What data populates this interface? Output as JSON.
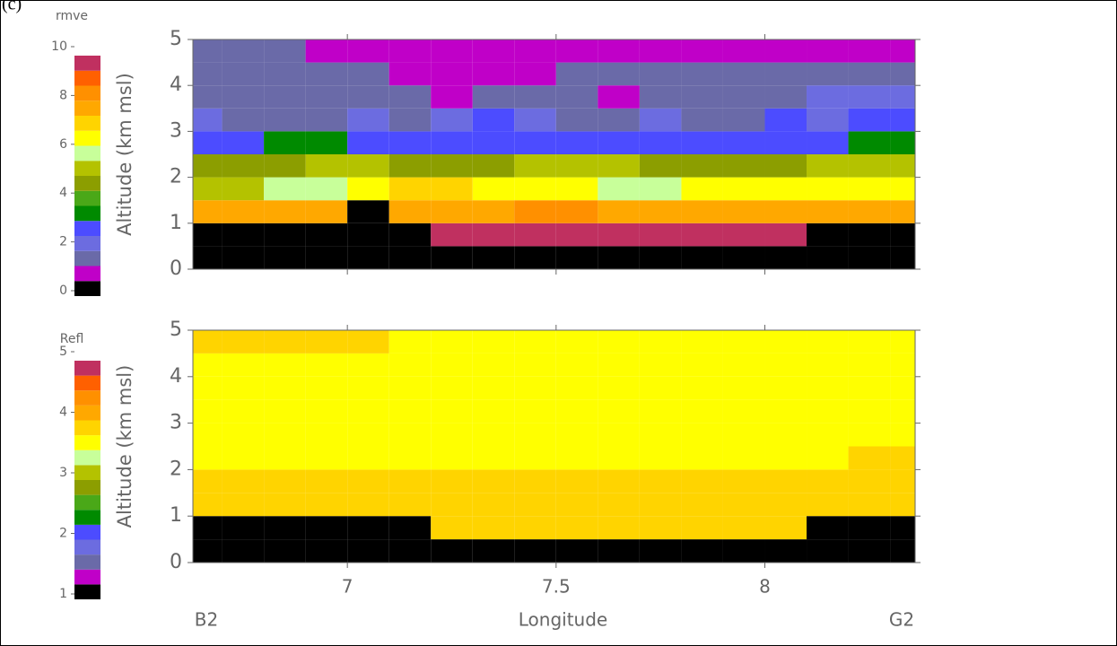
{
  "panel_label": "(c)",
  "chart_data": [
    {
      "type": "heatmap",
      "colorbar_label": "rmve",
      "ylabel": "Altitude (km msl)",
      "zlim": [
        0,
        10
      ],
      "cbticks": [
        0,
        2,
        4,
        6,
        8,
        10
      ],
      "colors": [
        "#000000",
        "#c000c8",
        "#6a6aa8",
        "#6c6ce0",
        "#4c4cff",
        "#008a00",
        "#4aa818",
        "#8c9e00",
        "#b4c200",
        "#c8ff9a",
        "#ffff00",
        "#ffd400",
        "#ffa800",
        "#ff9000",
        "#ff6000",
        "#c03060"
      ],
      "x": [
        6.65,
        6.75,
        6.85,
        6.95,
        7.05,
        7.15,
        7.25,
        7.35,
        7.45,
        7.55,
        7.65,
        7.75,
        7.85,
        7.95,
        8.05,
        8.15,
        8.25,
        8.35
      ],
      "y": [
        0.25,
        0.75,
        1.25,
        1.75,
        2.25,
        2.75,
        3.25,
        3.75,
        4.25,
        4.75
      ],
      "z": [
        [
          0,
          0,
          0,
          0,
          0,
          0,
          0,
          0,
          0,
          0,
          0,
          0,
          0,
          0,
          0,
          0,
          0,
          0
        ],
        [
          0,
          0,
          0,
          0,
          0,
          0,
          9.6,
          9.6,
          9.6,
          9.6,
          9.6,
          9.6,
          9.6,
          9.6,
          9.6,
          0,
          0,
          0
        ],
        [
          7.6,
          7.6,
          7.6,
          7.6,
          0,
          7.6,
          7.6,
          7.9,
          8.2,
          8.2,
          7.9,
          7.6,
          7.6,
          7.6,
          7.6,
          7.6,
          7.6,
          7.6
        ],
        [
          5.6,
          5.6,
          6.2,
          6.2,
          6.6,
          7.2,
          7.2,
          6.8,
          6.6,
          6.6,
          6.2,
          6.2,
          6.6,
          6.8,
          6.6,
          6.6,
          6.6,
          6.6
        ],
        [
          4.6,
          4.6,
          4.6,
          5.2,
          5.6,
          4.6,
          4.6,
          4.6,
          5.2,
          5.6,
          5.6,
          4.6,
          4.4,
          4.4,
          4.6,
          5.2,
          5.6,
          5.6
        ],
        [
          2.6,
          2.8,
          3.6,
          3.2,
          2.8,
          2.8,
          2.6,
          2.6,
          2.6,
          2.8,
          2.6,
          2.6,
          2.6,
          2.6,
          2.8,
          2.6,
          3.2,
          3.4
        ],
        [
          2.2,
          1.8,
          1.6,
          1.8,
          2.2,
          1.6,
          2.2,
          2.6,
          2.2,
          1.6,
          1.8,
          2.2,
          1.8,
          1.4,
          2.6,
          2.2,
          2.6,
          2.6
        ],
        [
          1.6,
          1.6,
          1.6,
          1.6,
          1.6,
          1.6,
          1.2,
          1.6,
          1.6,
          1.6,
          1.2,
          1.6,
          1.8,
          1.8,
          1.8,
          2.2,
          2.2,
          2.2
        ],
        [
          1.6,
          1.6,
          1.6,
          1.6,
          1.6,
          1.2,
          1.2,
          1.2,
          1.2,
          1.6,
          1.6,
          1.6,
          1.6,
          1.6,
          1.6,
          1.6,
          1.6,
          1.6
        ],
        [
          1.6,
          1.6,
          1.6,
          1.2,
          0.8,
          0.8,
          0.8,
          0.8,
          0.8,
          0.8,
          0.8,
          0.8,
          0.8,
          0.8,
          0.8,
          0.8,
          0.8,
          0.8
        ]
      ],
      "xlim": [
        6.63,
        8.36
      ],
      "xticks": [
        7.0,
        7.5,
        8.0
      ],
      "ylim": [
        0,
        5
      ],
      "yticks": [
        0,
        1,
        2,
        3,
        4,
        5
      ]
    },
    {
      "type": "heatmap",
      "colorbar_label": "Refl",
      "ylabel": "Altitude (km msl)",
      "xlabel": "Longitude",
      "x_end_labels": [
        "B2",
        "G2"
      ],
      "zlim": [
        1,
        5
      ],
      "cbticks": [
        1,
        2,
        3,
        4,
        5
      ],
      "colors": [
        "#000000",
        "#c000c8",
        "#6a6aa8",
        "#6c6ce0",
        "#4c4cff",
        "#008a00",
        "#4aa818",
        "#8c9e00",
        "#b4c200",
        "#c8ff9a",
        "#ffff00",
        "#ffd400",
        "#ffa800",
        "#ff9000",
        "#ff6000",
        "#c03060"
      ],
      "x": [
        6.65,
        6.75,
        6.85,
        6.95,
        7.05,
        7.15,
        7.25,
        7.35,
        7.45,
        7.55,
        7.65,
        7.75,
        7.85,
        7.95,
        8.05,
        8.15,
        8.25,
        8.35
      ],
      "y": [
        0.25,
        0.75,
        1.25,
        1.75,
        2.25,
        2.75,
        3.25,
        3.75,
        4.25,
        4.75
      ],
      "z": [
        [
          1.1,
          1.1,
          1.1,
          1.1,
          1.1,
          1.1,
          1.1,
          1.1,
          1.1,
          1.1,
          1.1,
          1.1,
          1.1,
          1.1,
          1.1,
          1.1,
          1.1,
          1.1
        ],
        [
          1.1,
          1.1,
          1.1,
          1.1,
          1.1,
          1.1,
          3.9,
          3.9,
          3.9,
          3.9,
          3.9,
          3.9,
          3.9,
          3.9,
          3.9,
          1.1,
          1.1,
          1.1
        ],
        [
          3.9,
          3.9,
          3.9,
          3.9,
          3.9,
          3.9,
          3.9,
          3.9,
          3.9,
          3.9,
          3.9,
          3.9,
          3.9,
          3.9,
          3.9,
          3.9,
          3.9,
          3.9
        ],
        [
          3.8,
          3.8,
          3.8,
          3.8,
          3.8,
          3.8,
          3.8,
          3.8,
          3.8,
          3.8,
          3.8,
          3.8,
          3.8,
          3.8,
          3.8,
          3.8,
          3.8,
          3.9
        ],
        [
          3.6,
          3.6,
          3.6,
          3.6,
          3.6,
          3.6,
          3.6,
          3.6,
          3.6,
          3.6,
          3.6,
          3.6,
          3.6,
          3.6,
          3.6,
          3.6,
          3.8,
          3.9
        ],
        [
          3.6,
          3.6,
          3.6,
          3.6,
          3.6,
          3.6,
          3.6,
          3.6,
          3.6,
          3.6,
          3.6,
          3.6,
          3.6,
          3.6,
          3.6,
          3.6,
          3.6,
          3.6
        ],
        [
          3.6,
          3.6,
          3.6,
          3.6,
          3.6,
          3.6,
          3.6,
          3.6,
          3.6,
          3.6,
          3.6,
          3.6,
          3.6,
          3.6,
          3.6,
          3.6,
          3.6,
          3.6
        ],
        [
          3.6,
          3.6,
          3.6,
          3.6,
          3.6,
          3.6,
          3.6,
          3.6,
          3.6,
          3.6,
          3.6,
          3.6,
          3.6,
          3.6,
          3.6,
          3.6,
          3.6,
          3.6
        ],
        [
          3.6,
          3.6,
          3.6,
          3.6,
          3.6,
          3.6,
          3.6,
          3.6,
          3.6,
          3.6,
          3.6,
          3.6,
          3.6,
          3.6,
          3.6,
          3.6,
          3.6,
          3.6
        ],
        [
          3.9,
          3.9,
          3.9,
          3.9,
          3.9,
          3.6,
          3.6,
          3.6,
          3.6,
          3.6,
          3.6,
          3.6,
          3.6,
          3.6,
          3.6,
          3.6,
          3.5,
          3.5
        ]
      ],
      "xlim": [
        6.63,
        8.36
      ],
      "xticks": [
        7.0,
        7.5,
        8.0
      ],
      "ylim": [
        0,
        5
      ],
      "yticks": [
        0,
        1,
        2,
        3,
        4,
        5
      ]
    }
  ]
}
